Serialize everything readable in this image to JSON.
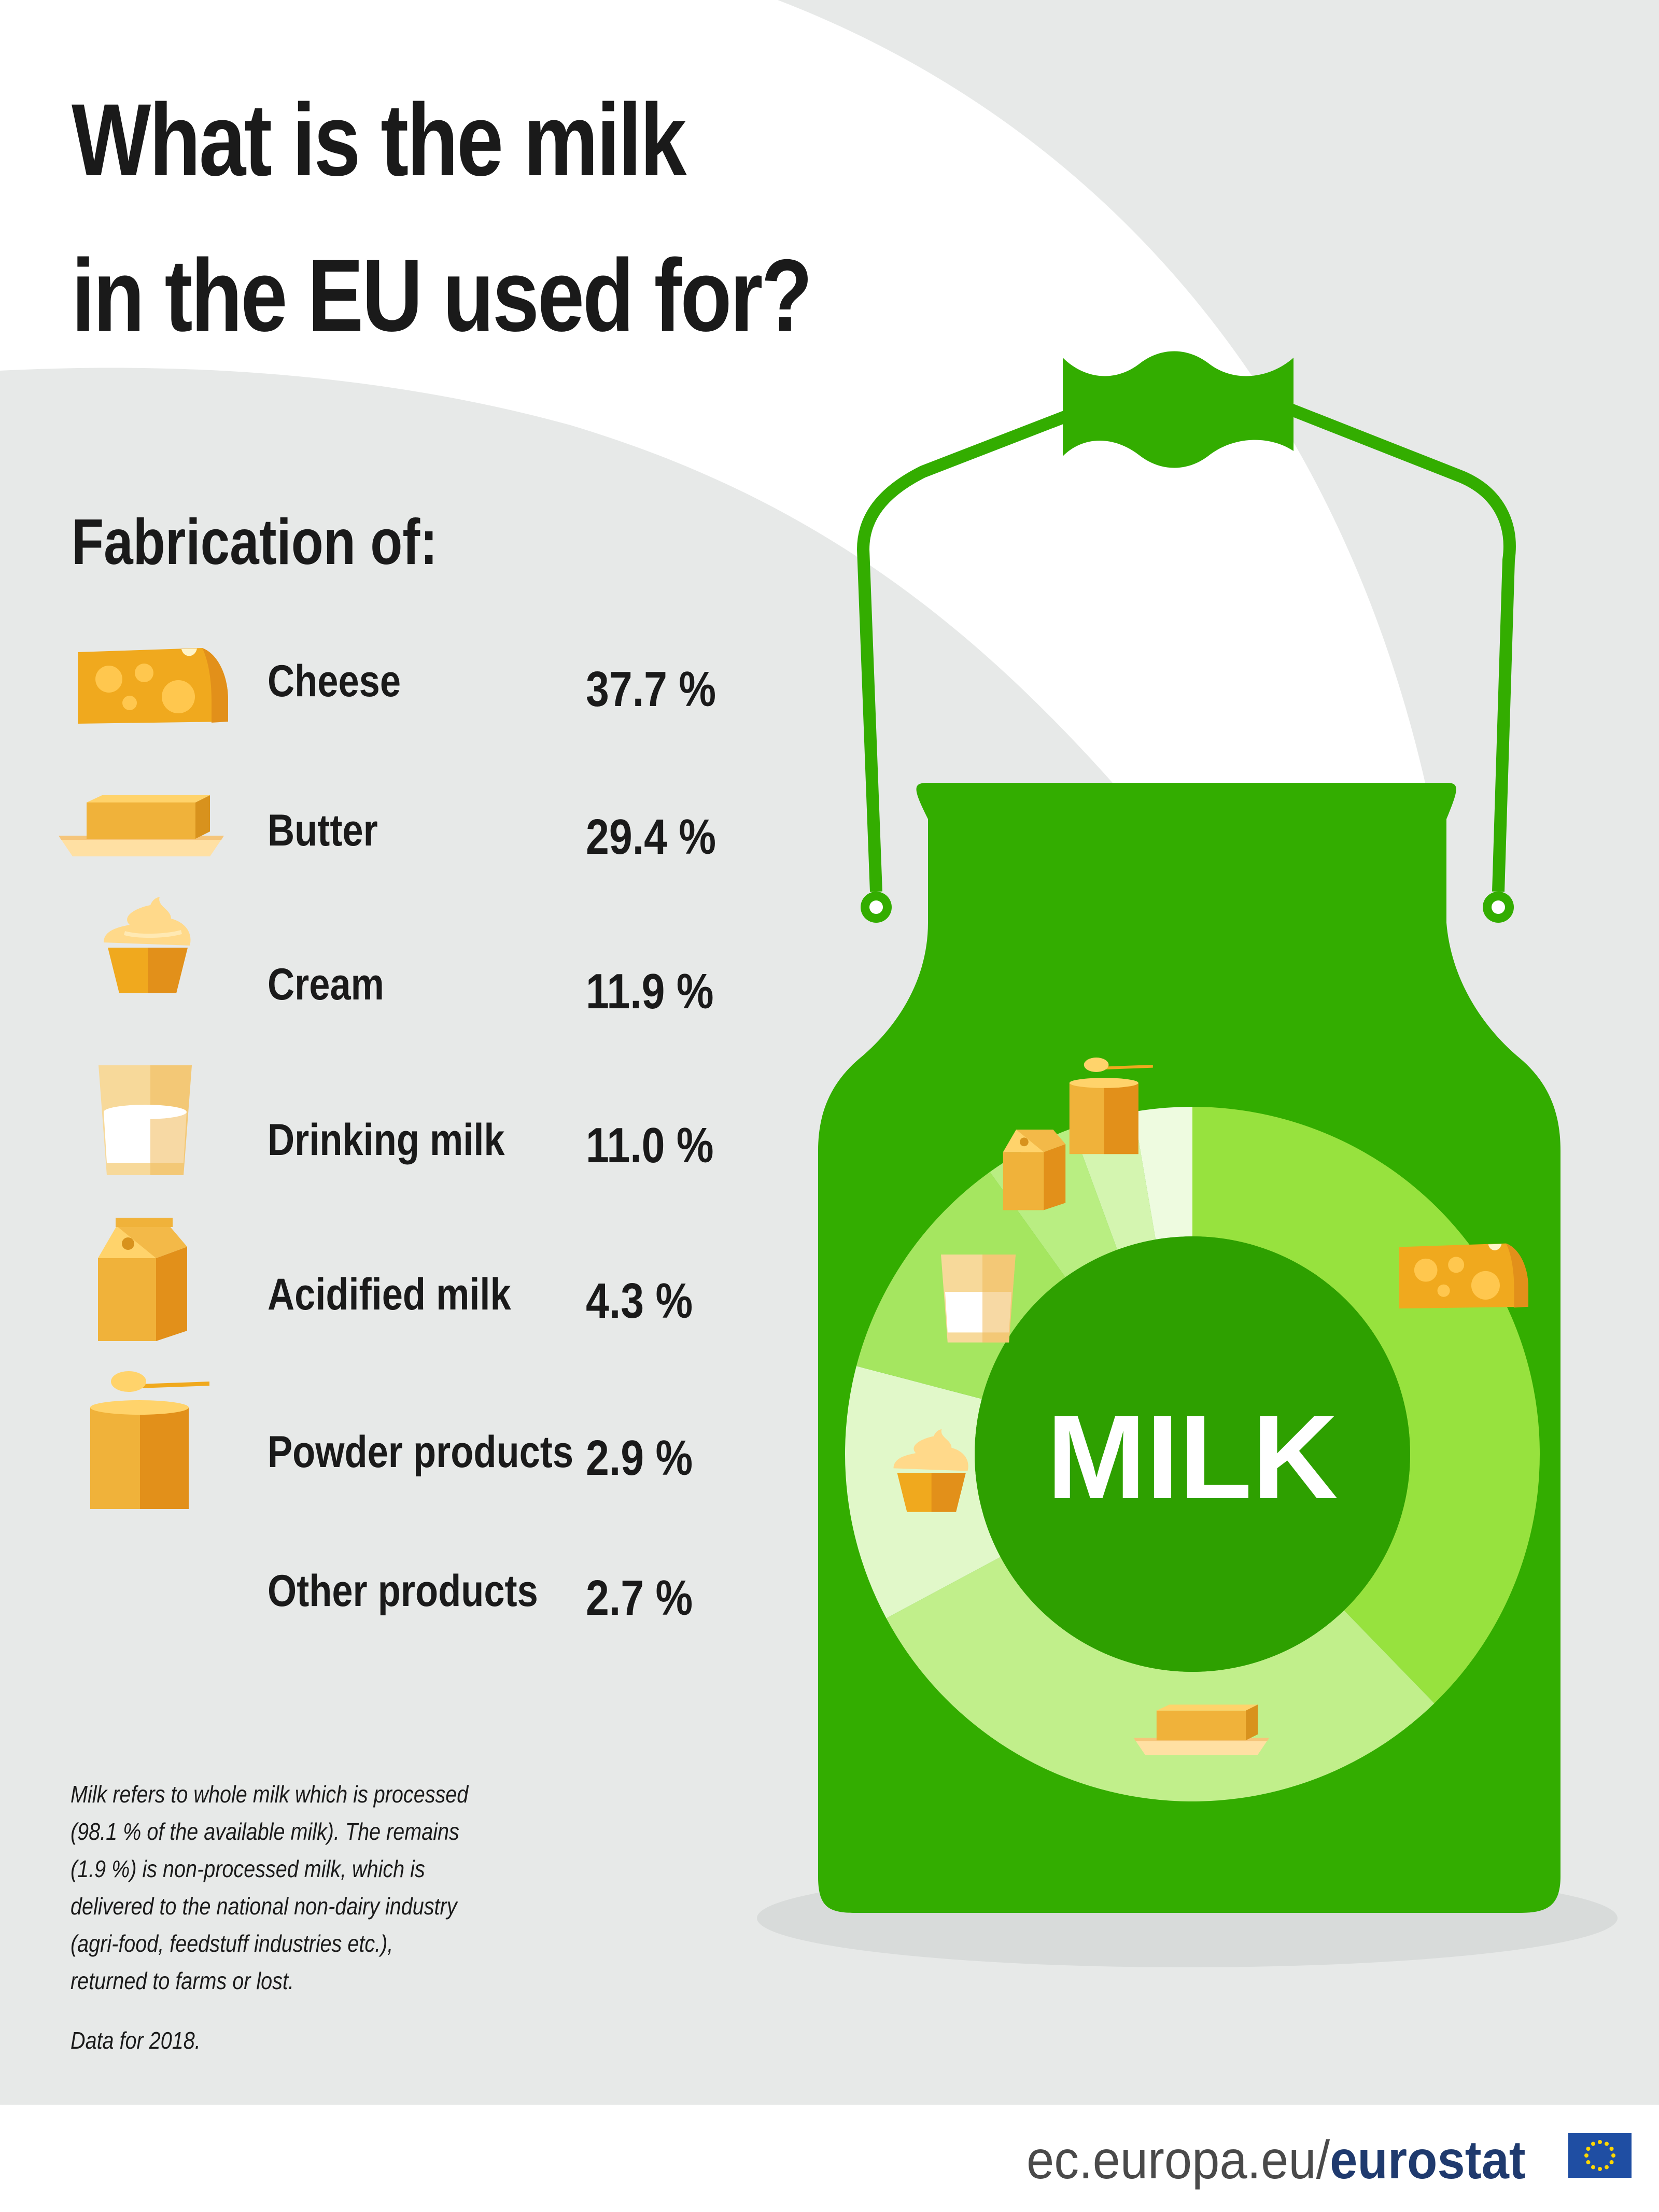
{
  "title_line1": "What is the milk",
  "title_line2": "in the EU used for?",
  "subtitle": "Fabrication of:",
  "center_label": "MILK",
  "chart_data": {
    "type": "pie",
    "categories": [
      "Cheese",
      "Butter",
      "Cream",
      "Drinking milk",
      "Acidified milk",
      "Powder products",
      "Other products"
    ],
    "values": [
      37.7,
      29.4,
      11.9,
      11.0,
      4.3,
      2.9,
      2.7
    ],
    "value_labels": [
      "37.7 %",
      "29.4 %",
      "11.9 %",
      "11.0 %",
      "4.3 %",
      "2.9 %",
      "2.7 %"
    ],
    "colors": [
      "#97e23e",
      "#c1ef8b",
      "#e1f8c9",
      "#a5e660",
      "#b9ee82",
      "#d4f5b0",
      "#eefbe0"
    ]
  },
  "icons": [
    "cheese-icon",
    "butter-icon",
    "cream-icon",
    "drinking-milk-icon",
    "acidified-milk-icon",
    "powder-icon"
  ],
  "note_lines": [
    "Milk refers to whole milk which is processed",
    "(98.1 % of the available milk). The remains",
    "(1.9 %) is non-processed milk, which is",
    "delivered to the national non-dairy industry",
    "(agri-food, feedstuff industries etc.),",
    "returned to farms or lost."
  ],
  "data_year": "Data for 2018.",
  "footer_site": "ec.europa.eu/",
  "footer_brand": "eurostat",
  "brand_colors": {
    "green": "#33ad00",
    "dark_green": "#2ea000",
    "cheese": "#f0a91e"
  }
}
